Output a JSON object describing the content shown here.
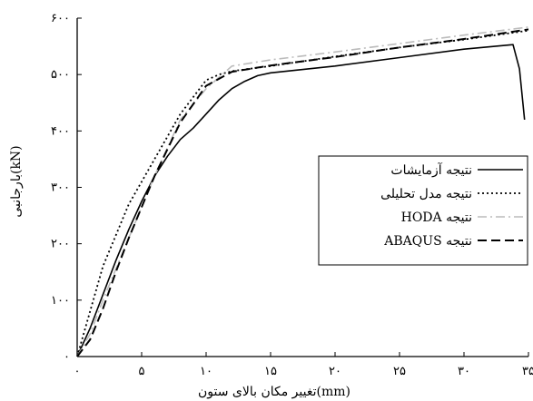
{
  "chart_data": {
    "type": "line",
    "xlabel": "تغییر مکان بالای ستون(mm)",
    "ylabel": "بارجانبی(kN)",
    "xlim": [
      0,
      35
    ],
    "ylim": [
      0,
      600
    ],
    "x_ticks": [
      0,
      5,
      10,
      15,
      20,
      25,
      30,
      35
    ],
    "x_tick_labels": [
      "۰",
      "۵",
      "۱۰",
      "۱۵",
      "۲۰",
      "۲۵",
      "۳۰",
      "۳۵"
    ],
    "y_ticks": [
      0,
      100,
      200,
      300,
      400,
      500,
      600
    ],
    "y_tick_labels": [
      "۰",
      "۱۰۰",
      "۲۰۰",
      "۳۰۰",
      "۴۰۰",
      "۵۰۰",
      "۶۰۰"
    ],
    "grid": false,
    "legend_position": "right",
    "series": [
      {
        "name": "نتیجه آزمایشات",
        "style": "solid",
        "color": "#000000",
        "x": [
          0,
          1,
          2,
          3,
          4,
          5,
          6,
          7,
          8,
          9,
          10,
          11,
          12,
          13,
          14,
          15,
          20,
          25,
          30,
          33.8,
          34.3,
          34.7
        ],
        "y": [
          0,
          50,
          110,
          170,
          225,
          275,
          320,
          355,
          385,
          405,
          430,
          455,
          475,
          488,
          498,
          503,
          515,
          530,
          545,
          553,
          510,
          420
        ]
      },
      {
        "name": "نتیجه مدل تحلیلی",
        "style": "dotted",
        "color": "#000000",
        "x": [
          0,
          2,
          4,
          6,
          8,
          9,
          10,
          11,
          12,
          15,
          20,
          25,
          30,
          35
        ],
        "y": [
          0,
          160,
          270,
          350,
          430,
          460,
          490,
          500,
          506,
          515,
          532,
          548,
          562,
          578
        ]
      },
      {
        "name": "HODA نتیجه",
        "style": "dashdot",
        "color": "#bbbbbb",
        "x": [
          0,
          1,
          2,
          3,
          4,
          6,
          8,
          10,
          12,
          15,
          20,
          25,
          30,
          35
        ],
        "y": [
          0,
          40,
          100,
          155,
          210,
          320,
          420,
          475,
          515,
          526,
          540,
          555,
          570,
          584
        ]
      },
      {
        "name": "ABAQUS نتیجه",
        "style": "dashed",
        "color": "#000000",
        "x": [
          0,
          1,
          2,
          3,
          4,
          6,
          8,
          10,
          12,
          15,
          20,
          25,
          30,
          35
        ],
        "y": [
          0,
          30,
          85,
          150,
          210,
          320,
          415,
          480,
          505,
          516,
          531,
          548,
          563,
          580
        ]
      }
    ]
  }
}
